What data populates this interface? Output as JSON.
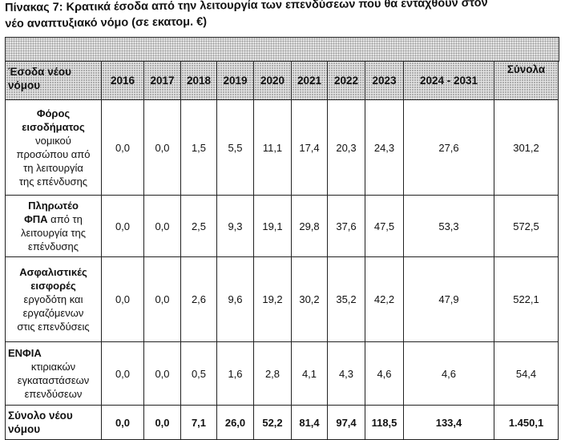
{
  "caption": {
    "line1": "Πίνακας 7: Κρατικά έσοδα από την λειτουργία των επενδύσεων που θα ενταχθούν στον",
    "line2": "νέο αναπτυξιακό νόμο (σε εκατομ. €)"
  },
  "table": {
    "header": {
      "label_line1": "Έσοδα νέου",
      "label_line2": "νόμου",
      "years": [
        "2016",
        "2017",
        "2018",
        "2019",
        "2020",
        "2021",
        "2022",
        "2023",
        "2024 - 2031"
      ],
      "total": "Σύνολα"
    },
    "rows": [
      {
        "bold_lines": [
          "Φόρος",
          "εισοδήματος"
        ],
        "normal_lines": [
          "νομικού",
          "προσώπου από",
          "τη λειτουργία",
          "της επένδυσης"
        ],
        "values": [
          "0,0",
          "0,0",
          "1,5",
          "5,5",
          "11,1",
          "17,4",
          "20,3",
          "24,3",
          "27,6",
          "301,2"
        ]
      },
      {
        "bold_lines": [
          "Πληρωτέο"
        ],
        "mixed_bold": "ΦΠΑ",
        "mixed_normal": " από τη",
        "normal_lines": [
          "λειτουργία της",
          "επένδυσης"
        ],
        "values": [
          "0,0",
          "0,0",
          "2,5",
          "9,3",
          "19,1",
          "29,8",
          "37,6",
          "47,5",
          "53,3",
          "572,5"
        ]
      },
      {
        "bold_lines": [
          "Ασφαλιστικές",
          "εισφορές"
        ],
        "normal_lines": [
          "εργοδότη και",
          "εργαζόμενων",
          "στις επενδύσεις"
        ],
        "values": [
          "0,0",
          "0,0",
          "2,6",
          "9,6",
          "19,2",
          "30,2",
          "35,2",
          "42,2",
          "47,9",
          "522,1"
        ]
      },
      {
        "bold_lines": [
          "ΕΝΦΙΑ"
        ],
        "normal_lines": [
          "κτιριακών",
          "εγκαταστάσεων",
          "επενδύσεων"
        ],
        "values": [
          "0,0",
          "0,0",
          "0,5",
          "1,6",
          "2,8",
          "4,1",
          "4,3",
          "4,6",
          "4,6",
          "54,4"
        ]
      }
    ],
    "sum_row": {
      "label_line1": "Σύνολο νέου",
      "label_line2": "νόμου",
      "values": [
        "0,0",
        "0,0",
        "7,1",
        "26,0",
        "52,2",
        "81,4",
        "97,4",
        "118,5",
        "133,4",
        "1.450,1"
      ]
    }
  }
}
